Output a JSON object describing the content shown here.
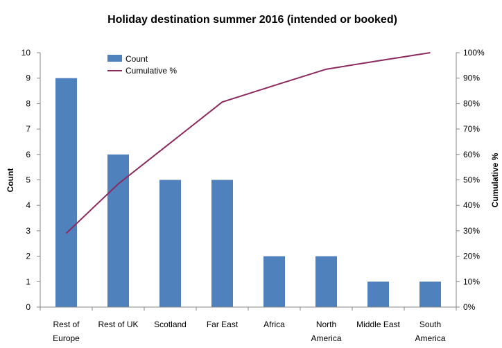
{
  "chart_data": {
    "type": "bar",
    "title": "Holiday destination summer 2016 (intended or booked)",
    "categories": [
      [
        "Rest of",
        "Europe"
      ],
      [
        "Rest of UK"
      ],
      [
        "Scotland"
      ],
      [
        "Far East"
      ],
      [
        "Africa"
      ],
      [
        "North",
        "America"
      ],
      [
        "Middle East"
      ],
      [
        "South",
        "America"
      ]
    ],
    "series": [
      {
        "name": "Count",
        "type": "bar",
        "axis": "left",
        "color": "#4F81BD",
        "values": [
          9,
          6,
          5,
          5,
          2,
          2,
          1,
          1
        ]
      },
      {
        "name": "Cumulative %",
        "type": "line",
        "axis": "right",
        "color": "#8B2A5E",
        "values": [
          29.0,
          48.4,
          64.5,
          80.6,
          87.1,
          93.5,
          96.8,
          100.0
        ]
      }
    ],
    "ylabel": "Count",
    "y2label": "Cumulative %",
    "ylim": [
      0,
      10
    ],
    "yticks": [
      "0",
      "1",
      "2",
      "3",
      "4",
      "5",
      "6",
      "7",
      "8",
      "9",
      "10"
    ],
    "y2lim": [
      0,
      100
    ],
    "y2ticks": [
      "0%",
      "10%",
      "20%",
      "30%",
      "40%",
      "50%",
      "60%",
      "70%",
      "80%",
      "90%",
      "100%"
    ],
    "grid": false,
    "legend": "top-left"
  }
}
